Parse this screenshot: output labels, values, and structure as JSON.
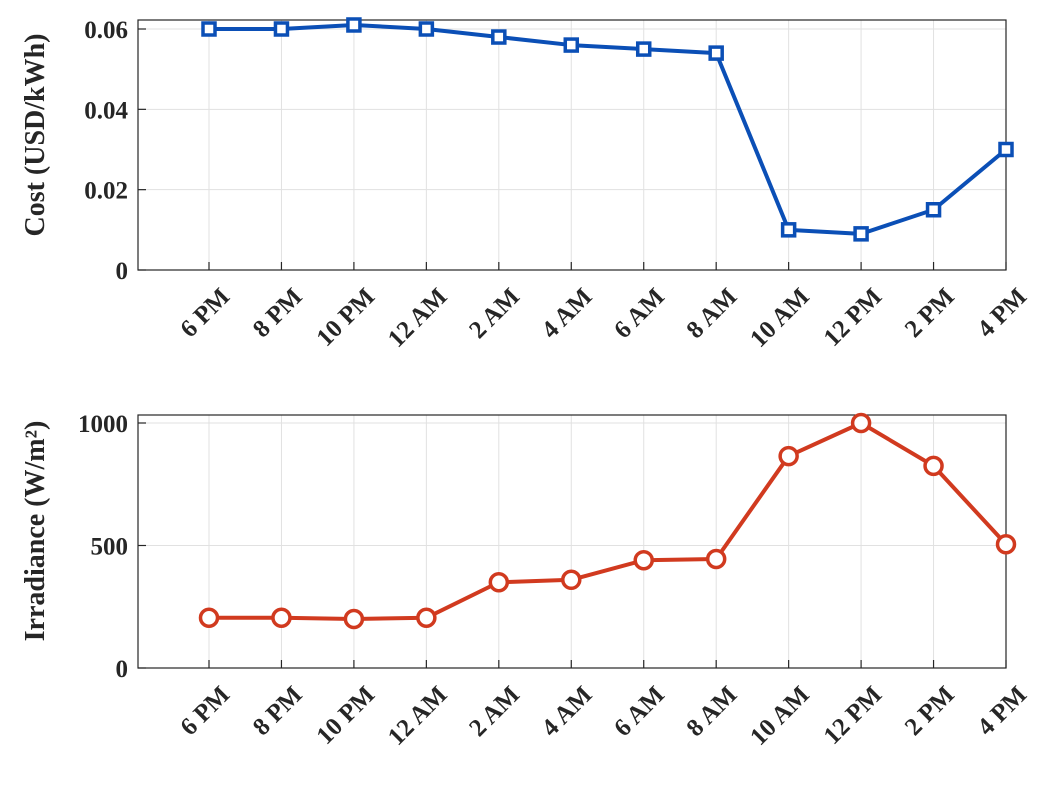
{
  "chart_data": [
    {
      "type": "line",
      "categories": [
        "6 PM",
        "8 PM",
        "10 PM",
        "12 AM",
        "2 AM",
        "4 AM",
        "6 AM",
        "8 AM",
        "10 AM",
        "12 PM",
        "2 PM",
        "4 PM"
      ],
      "series": [
        {
          "values": [
            0.06,
            0.06,
            0.061,
            0.06,
            0.058,
            0.056,
            0.055,
            0.054,
            0.01,
            0.009,
            0.015,
            0.03
          ]
        }
      ],
      "ylabel": "Cost (USD/kWh)",
      "xlabel": "",
      "ylim": [
        0,
        0.06
      ],
      "yticks": [
        "0",
        "0.02",
        "0.04",
        "0.06"
      ],
      "ytick_values": [
        0,
        0.02,
        0.04,
        0.06
      ],
      "marker": "square",
      "color": "#0b4fb6",
      "grid": true
    },
    {
      "type": "line",
      "categories": [
        "6 PM",
        "8 PM",
        "10 PM",
        "12 AM",
        "2 AM",
        "4 AM",
        "6 AM",
        "8 AM",
        "10 AM",
        "12 PM",
        "2 PM",
        "4 PM"
      ],
      "series": [
        {
          "values": [
            205,
            205,
            200,
            205,
            350,
            360,
            440,
            445,
            865,
            1000,
            825,
            505
          ]
        }
      ],
      "ylabel": "Irradiance (W/m²)",
      "xlabel": "",
      "ylim": [
        0,
        1000
      ],
      "yticks": [
        "0",
        "500",
        "1000"
      ],
      "ytick_values": [
        0,
        500,
        1000
      ],
      "marker": "circle",
      "color": "#d13a1f",
      "grid": true
    }
  ]
}
